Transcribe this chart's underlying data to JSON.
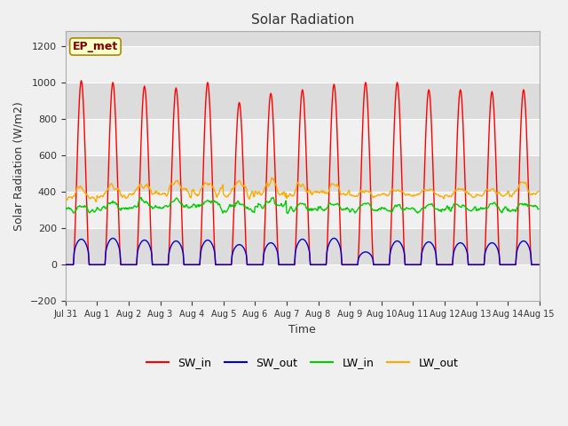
{
  "title": "Solar Radiation",
  "xlabel": "Time",
  "ylabel": "Solar Radiation (W/m2)",
  "ylim": [
    -200,
    1280
  ],
  "yticks": [
    -200,
    0,
    200,
    400,
    600,
    800,
    1000,
    1200
  ],
  "background_color": "#f0f0f0",
  "plot_bg_light": "#f0f0f0",
  "plot_bg_dark": "#dcdcdc",
  "grid_color": "#ffffff",
  "label_box_text": "EP_met",
  "label_box_bg": "#ffffcc",
  "label_box_edge": "#aa8800",
  "label_box_text_color": "#800000",
  "series": {
    "SW_in": {
      "color": "#ff0000",
      "lw": 1.0
    },
    "SW_out": {
      "color": "#0000cc",
      "lw": 1.0
    },
    "LW_in": {
      "color": "#00cc00",
      "lw": 1.0
    },
    "LW_out": {
      "color": "#ffaa00",
      "lw": 1.0
    }
  },
  "xtick_labels": [
    "Jul 31",
    "Aug 1",
    "Aug 2",
    "Aug 3",
    "Aug 4",
    "Aug 5",
    "Aug 6",
    "Aug 7",
    "Aug 8",
    "Aug 9",
    "Aug 10",
    "Aug 11",
    "Aug 12",
    "Aug 13",
    "Aug 14",
    "Aug 15"
  ],
  "n_days": 15,
  "dt_hours": 0.5,
  "SW_in_peaks": [
    1010,
    1000,
    980,
    970,
    1000,
    890,
    940,
    960,
    990,
    1000,
    1000,
    960,
    960,
    950,
    960
  ],
  "SW_out_peaks": [
    140,
    145,
    135,
    130,
    135,
    110,
    120,
    140,
    145,
    70,
    130,
    125,
    120,
    120,
    130
  ],
  "LW_in_base": [
    300,
    310,
    315,
    315,
    320,
    310,
    315,
    300,
    305,
    295,
    300,
    300,
    305,
    305,
    310
  ],
  "LW_in_amp": [
    55,
    55,
    60,
    65,
    65,
    70,
    75,
    70,
    60,
    55,
    50,
    50,
    50,
    50,
    55
  ],
  "LW_out_base": [
    365,
    375,
    390,
    395,
    395,
    390,
    395,
    385,
    385,
    375,
    380,
    380,
    380,
    380,
    385
  ],
  "LW_out_amp": [
    90,
    90,
    95,
    95,
    100,
    105,
    110,
    100,
    90,
    55,
    50,
    50,
    55,
    60,
    90
  ]
}
